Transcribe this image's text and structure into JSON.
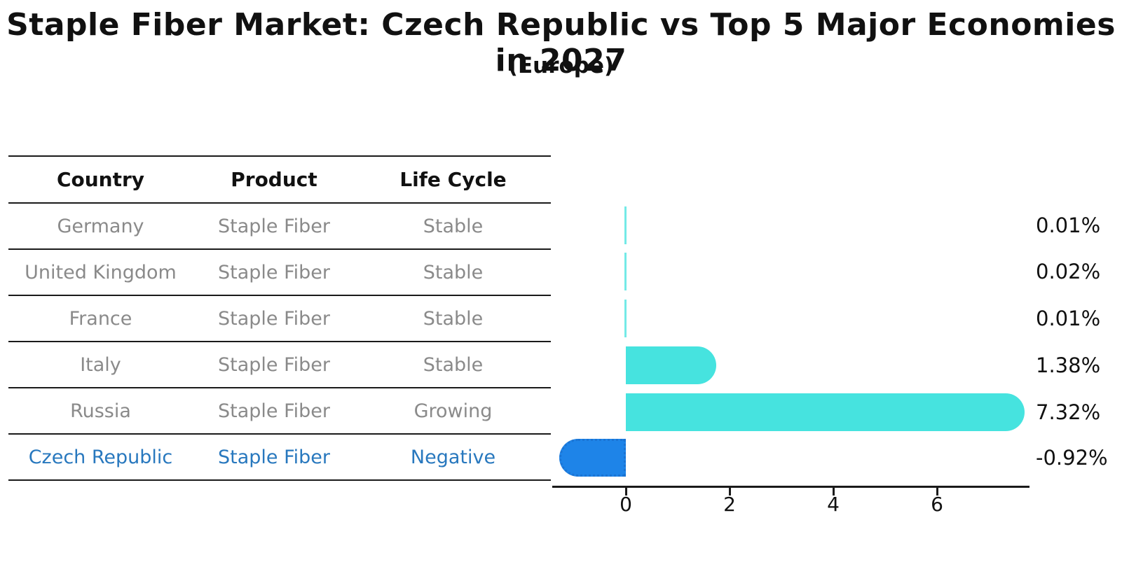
{
  "title": "Staple Fiber Market: Czech Republic vs Top 5 Major Economies in 2027",
  "subtitle": "(Europe)",
  "table": {
    "headers": [
      "Country",
      "Product",
      "Life Cycle"
    ],
    "rows": [
      {
        "country": "Germany",
        "product": "Staple Fiber",
        "life_cycle": "Stable",
        "highlight": false
      },
      {
        "country": "United Kingdom",
        "product": "Staple Fiber",
        "life_cycle": "Stable",
        "highlight": false
      },
      {
        "country": "France",
        "product": "Staple Fiber",
        "life_cycle": "Stable",
        "highlight": false
      },
      {
        "country": "Italy",
        "product": "Staple Fiber",
        "life_cycle": "Stable",
        "highlight": false
      },
      {
        "country": "Russia",
        "product": "Staple Fiber",
        "life_cycle": "Growing",
        "highlight": false
      },
      {
        "country": "Czech Republic",
        "product": "Staple Fiber",
        "life_cycle": "Negative",
        "highlight": true
      }
    ]
  },
  "chart_data": {
    "type": "bar",
    "orientation": "horizontal",
    "categories": [
      "Germany",
      "United Kingdom",
      "France",
      "Italy",
      "Russia",
      "Czech Republic"
    ],
    "values": [
      0.01,
      0.02,
      0.01,
      1.38,
      7.32,
      -0.92
    ],
    "value_labels": [
      "0.01%",
      "0.02%",
      "0.01%",
      "1.38%",
      "7.32%",
      "-0.92%"
    ],
    "x_ticks": [
      0,
      2,
      4,
      6
    ],
    "xlim": [
      -1.45,
      7.8
    ],
    "grid": false,
    "legend": false,
    "bar_color": "#46E3DF",
    "highlight_bar_color": "#1E84E8",
    "highlight_border_color": "#1a74d4",
    "highlight_index": 5,
    "highlight_border_style": "dotted",
    "axis_color": "#1a1a1a",
    "text_color": "#111111",
    "muted_text_color": "#8a8a8a",
    "highlight_text_color": "#2878be"
  }
}
